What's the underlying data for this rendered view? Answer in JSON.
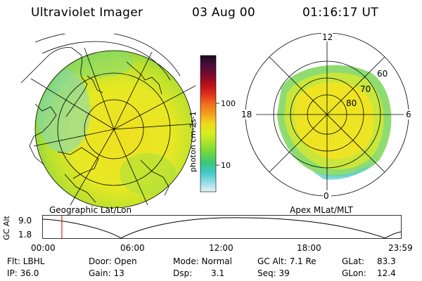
{
  "header": {
    "instrument": "Ultraviolet Imager",
    "date": "03 Aug 00",
    "time": "01:16:17 UT"
  },
  "left_panel": {
    "label": "Geographic Lat/Lon"
  },
  "right_panel": {
    "label": "Apex MLat/MLT",
    "mlt_labels": [
      "12",
      "18",
      "6",
      "0"
    ],
    "lat_labels": [
      "60",
      "70",
      "80"
    ]
  },
  "colorbar": {
    "unit_label": "photon cm-2s-1",
    "ticks": [
      "100",
      "10"
    ],
    "colors": [
      "#1a0a1e",
      "#4a0e3c",
      "#7a0c2c",
      "#b8101a",
      "#e0301a",
      "#f0701c",
      "#f4a01e",
      "#f0d81e",
      "#d8ee20",
      "#a6e22c",
      "#6cd840",
      "#3cc878",
      "#40c8c8",
      "#90dce8",
      "#e8f2f4"
    ]
  },
  "timeline": {
    "axis_title": "GC Alt",
    "ymax": "9.0",
    "ymin": "1.8",
    "time_ticks": [
      "00:00",
      "06:00",
      "12:00",
      "18:00",
      "23:59"
    ],
    "current_hour": 1.27,
    "marker_color": "#e02020"
  },
  "info": {
    "flt": "Flt: LBHL",
    "ip": "IP: 36.0",
    "door": "Door: Open",
    "gain": "Gain: 13",
    "mode": "Mode: Normal",
    "dsp_label": "Dsp:",
    "dsp_value": "3.1",
    "gc_alt": "GC Alt: 7.1 Re",
    "seq": "Seq: 39",
    "glat_label": "GLat:",
    "glat_value": "83.3",
    "glon_label": "GLon:",
    "glon_value": "12.4"
  }
}
